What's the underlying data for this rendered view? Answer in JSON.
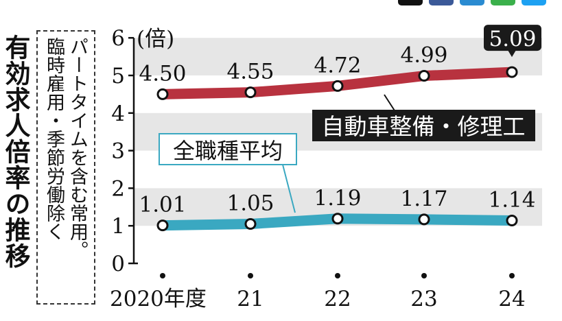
{
  "title_vertical": "有効求人倍率の推移",
  "note_lines": [
    "パートタイムを含む常用。",
    "臨時雇用・季節労働除く"
  ],
  "unit_label": "(倍)",
  "chart_data": {
    "type": "line",
    "x": [
      "2020年度",
      "21",
      "22",
      "23",
      "24"
    ],
    "ylim": [
      0,
      6
    ],
    "yticks": [
      "0",
      "1",
      "2",
      "3",
      "4",
      "5",
      "6"
    ],
    "grid": "alternating horizontal bands",
    "series": [
      {
        "name": "自動車整備・修理工",
        "values": [
          4.5,
          4.55,
          4.72,
          4.99,
          5.09
        ],
        "labels": [
          "4.50",
          "4.55",
          "4.72",
          "4.99",
          "5.09"
        ],
        "color": "#b8323f",
        "label_bg": "#1a1a1a",
        "label_color": "#ffffff"
      },
      {
        "name": "全職種平均",
        "values": [
          1.01,
          1.05,
          1.19,
          1.17,
          1.14
        ],
        "labels": [
          "1.01",
          "1.05",
          "1.19",
          "1.17",
          "1.14"
        ],
        "color": "#3aa8c1",
        "label_bg": "#ffffff",
        "label_color": "#111111",
        "label_border": "#3aa8c1"
      }
    ]
  },
  "colors": {
    "band": "#e6e6e6",
    "axis": "#111111",
    "icons": [
      "#111111",
      "#3b5998",
      "#2a8bd1",
      "#3bb04b",
      "#1da1f2"
    ]
  }
}
